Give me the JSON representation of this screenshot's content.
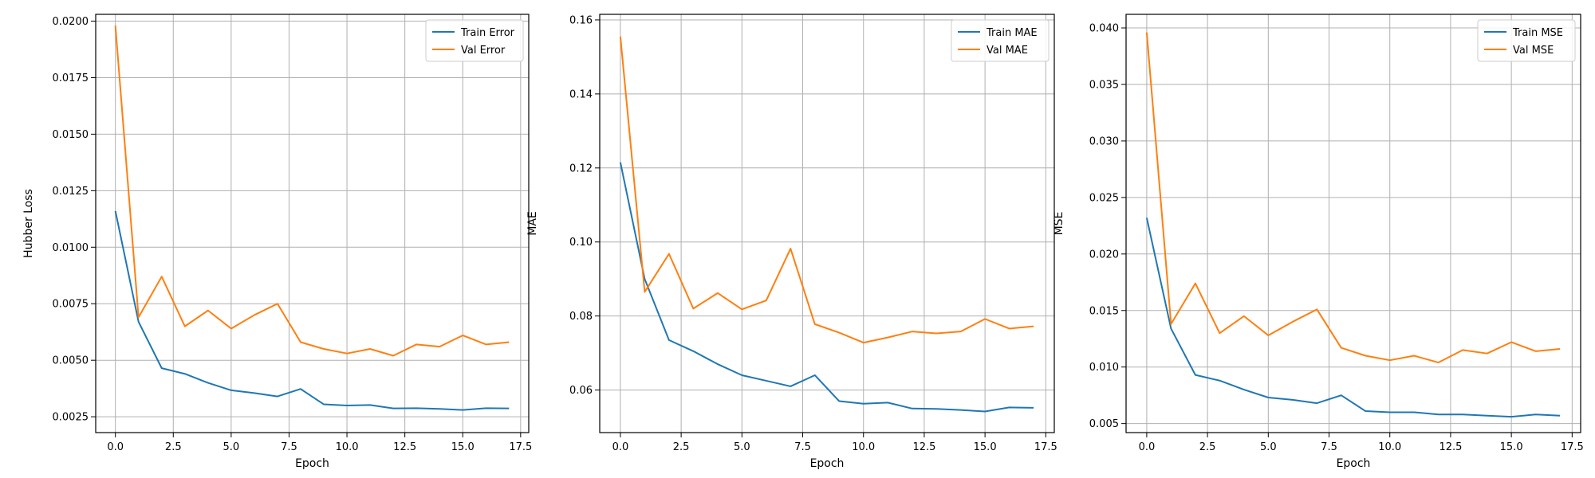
{
  "colors": {
    "train": "#1f77b4",
    "val": "#ff7f0e",
    "grid": "#b0b0b0",
    "axis": "#000000"
  },
  "chart_data": [
    {
      "type": "line",
      "xlabel": "Epoch",
      "ylabel": "Hubber Loss",
      "xlim": [
        -0.85,
        17.85
      ],
      "ylim": [
        0.0018,
        0.0203
      ],
      "xticks": [
        0,
        2.5,
        5,
        7.5,
        10,
        12.5,
        15,
        17.5
      ],
      "xtick_labels": [
        "0.0",
        "2.5",
        "5.0",
        "7.5",
        "10.0",
        "12.5",
        "15.0",
        "17.5"
      ],
      "yticks": [
        0.0025,
        0.005,
        0.0075,
        0.01,
        0.0125,
        0.015,
        0.0175,
        0.02
      ],
      "ytick_labels": [
        "0.0025",
        "0.0050",
        "0.0075",
        "0.0100",
        "0.0125",
        "0.0150",
        "0.0175",
        "0.0200"
      ],
      "grid": true,
      "legend_position": "top-right",
      "x": [
        0,
        1,
        2,
        3,
        4,
        5,
        6,
        7,
        8,
        9,
        10,
        11,
        12,
        13,
        14,
        15,
        16,
        17
      ],
      "series": [
        {
          "name": "Train Error",
          "values": [
            0.0116,
            0.0067,
            0.00465,
            0.0044,
            0.004,
            0.00367,
            0.00355,
            0.0034,
            0.00373,
            0.00305,
            0.003,
            0.00302,
            0.00287,
            0.00288,
            0.00285,
            0.0028,
            0.00288,
            0.00287
          ]
        },
        {
          "name": "Val Error",
          "values": [
            0.0198,
            0.0069,
            0.0087,
            0.0065,
            0.0072,
            0.0064,
            0.007,
            0.0075,
            0.0058,
            0.0055,
            0.0053,
            0.0055,
            0.0052,
            0.0057,
            0.0056,
            0.0061,
            0.0057,
            0.0058
          ]
        }
      ]
    },
    {
      "type": "line",
      "xlabel": "Epoch",
      "ylabel": "MAE",
      "xlim": [
        -0.85,
        17.85
      ],
      "ylim": [
        0.0485,
        0.1615
      ],
      "xticks": [
        0,
        2.5,
        5,
        7.5,
        10,
        12.5,
        15,
        17.5
      ],
      "xtick_labels": [
        "0.0",
        "2.5",
        "5.0",
        "7.5",
        "10.0",
        "12.5",
        "15.0",
        "17.5"
      ],
      "yticks": [
        0.06,
        0.08,
        0.1,
        0.12,
        0.14,
        0.16
      ],
      "ytick_labels": [
        "0.06",
        "0.08",
        "0.10",
        "0.12",
        "0.14",
        "0.16"
      ],
      "grid": true,
      "legend_position": "top-right",
      "x": [
        0,
        1,
        2,
        3,
        4,
        5,
        6,
        7,
        8,
        9,
        10,
        11,
        12,
        13,
        14,
        15,
        16,
        17
      ],
      "series": [
        {
          "name": "Train MAE",
          "values": [
            0.1215,
            0.09,
            0.0735,
            0.0705,
            0.067,
            0.064,
            0.0625,
            0.061,
            0.064,
            0.057,
            0.0563,
            0.0566,
            0.055,
            0.0549,
            0.0546,
            0.0542,
            0.0553,
            0.0552
          ]
        },
        {
          "name": "Val MAE",
          "values": [
            0.1555,
            0.0865,
            0.0968,
            0.082,
            0.0862,
            0.0818,
            0.0842,
            0.0982,
            0.0778,
            0.0755,
            0.0728,
            0.0742,
            0.0758,
            0.0753,
            0.0758,
            0.0792,
            0.0766,
            0.0772
          ]
        }
      ]
    },
    {
      "type": "line",
      "xlabel": "Epoch",
      "ylabel": "MSE",
      "xlim": [
        -0.85,
        17.85
      ],
      "ylim": [
        0.0042,
        0.0412
      ],
      "xticks": [
        0,
        2.5,
        5,
        7.5,
        10,
        12.5,
        15,
        17.5
      ],
      "xtick_labels": [
        "0.0",
        "2.5",
        "5.0",
        "7.5",
        "10.0",
        "12.5",
        "15.0",
        "17.5"
      ],
      "yticks": [
        0.005,
        0.01,
        0.015,
        0.02,
        0.025,
        0.03,
        0.035,
        0.04
      ],
      "ytick_labels": [
        "0.005",
        "0.010",
        "0.015",
        "0.020",
        "0.025",
        "0.030",
        "0.035",
        "0.040"
      ],
      "grid": true,
      "legend_position": "top-right",
      "x": [
        0,
        1,
        2,
        3,
        4,
        5,
        6,
        7,
        8,
        9,
        10,
        11,
        12,
        13,
        14,
        15,
        16,
        17
      ],
      "series": [
        {
          "name": "Train MSE",
          "values": [
            0.0232,
            0.0134,
            0.0093,
            0.0088,
            0.008,
            0.0073,
            0.0071,
            0.0068,
            0.0075,
            0.0061,
            0.006,
            0.006,
            0.0058,
            0.0058,
            0.0057,
            0.0056,
            0.0058,
            0.0057
          ]
        },
        {
          "name": "Val MSE",
          "values": [
            0.0396,
            0.0138,
            0.0174,
            0.013,
            0.0145,
            0.0128,
            0.014,
            0.0151,
            0.0117,
            0.011,
            0.0106,
            0.011,
            0.0104,
            0.0115,
            0.0112,
            0.0122,
            0.0114,
            0.0116
          ]
        }
      ]
    }
  ]
}
